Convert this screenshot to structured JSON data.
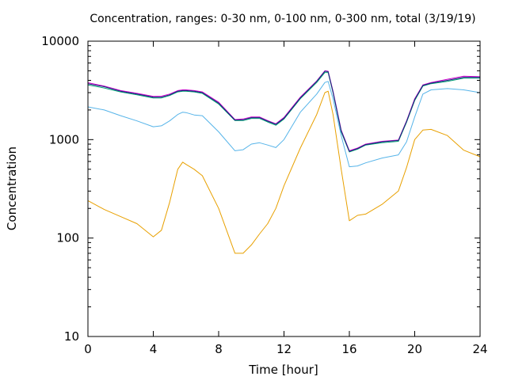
{
  "chart_data": {
    "type": "line",
    "title": "Concentration, ranges: 0-30 nm, 0-100 nm, 0-300 nm, total (3/19/19)",
    "xlabel": "Time [hour]",
    "ylabel": "Concentration",
    "xlim": [
      0,
      24
    ],
    "ylim": [
      10,
      10000
    ],
    "yscale": "log",
    "grid": false,
    "x_ticks": [
      0,
      4,
      8,
      12,
      16,
      20,
      24
    ],
    "x_tick_labels": [
      "0",
      "4",
      "8",
      "12",
      "16",
      "20",
      "24"
    ],
    "y_ticks": [
      10,
      100,
      1000,
      10000
    ],
    "y_tick_labels": [
      "10",
      "100",
      "1000",
      "10000"
    ],
    "x": [
      0,
      1,
      2,
      3,
      4,
      4.5,
      5,
      5.5,
      5.8,
      6,
      6.5,
      7,
      8,
      9,
      9.5,
      10,
      10.5,
      11,
      11.5,
      12,
      13,
      14,
      14.5,
      14.7,
      15,
      15.5,
      16,
      16.5,
      17,
      18,
      19,
      19.5,
      20,
      20.5,
      21,
      22,
      23,
      24
    ],
    "series": [
      {
        "color": "#e8a000",
        "values": [
          240,
          195,
          165,
          140,
          103,
          120,
          230,
          500,
          590,
          560,
          500,
          430,
          200,
          70,
          70,
          85,
          110,
          140,
          200,
          340,
          820,
          1800,
          3000,
          3100,
          1800,
          500,
          150,
          170,
          175,
          220,
          300,
          520,
          1000,
          1250,
          1270,
          1100,
          780,
          670
        ]
      },
      {
        "color": "#56b4e9",
        "values": [
          2150,
          2000,
          1750,
          1550,
          1350,
          1380,
          1550,
          1800,
          1900,
          1880,
          1780,
          1750,
          1200,
          770,
          790,
          900,
          930,
          880,
          830,
          1000,
          1900,
          2900,
          3800,
          3900,
          2600,
          1100,
          530,
          540,
          580,
          650,
          700,
          950,
          1700,
          2900,
          3200,
          3300,
          3200,
          3000
        ]
      },
      {
        "color": "#009e73",
        "values": [
          3600,
          3350,
          3050,
          2850,
          2650,
          2650,
          2800,
          3050,
          3100,
          3100,
          3050,
          2950,
          2300,
          1560,
          1560,
          1640,
          1640,
          1510,
          1400,
          1620,
          2600,
          3800,
          4800,
          4800,
          3000,
          1200,
          750,
          800,
          880,
          930,
          960,
          1500,
          2500,
          3500,
          3700,
          3900,
          4200,
          4200
        ]
      },
      {
        "color": "#cc00cc",
        "values": [
          3780,
          3500,
          3150,
          2950,
          2750,
          2760,
          2900,
          3150,
          3200,
          3200,
          3150,
          3050,
          2400,
          1600,
          1620,
          1700,
          1700,
          1560,
          1450,
          1680,
          2700,
          3950,
          5000,
          4950,
          3100,
          1250,
          770,
          820,
          900,
          960,
          990,
          1550,
          2600,
          3600,
          3800,
          4100,
          4400,
          4350
        ]
      },
      {
        "color": "#1a237e",
        "values": [
          3700,
          3450,
          3100,
          2900,
          2700,
          2700,
          2850,
          3100,
          3150,
          3150,
          3100,
          3000,
          2350,
          1580,
          1590,
          1670,
          1670,
          1540,
          1430,
          1650,
          2650,
          3900,
          4950,
          4900,
          3050,
          1230,
          760,
          810,
          890,
          950,
          980,
          1530,
          2550,
          3550,
          3750,
          4000,
          4300,
          4300
        ]
      }
    ]
  }
}
